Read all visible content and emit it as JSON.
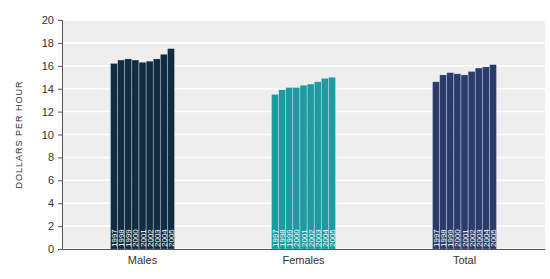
{
  "chart_data": {
    "type": "bar",
    "y_label": "DOLLARS PER HOUR",
    "categories": [
      "Males",
      "Females",
      "Total"
    ],
    "series": [
      {
        "name": "1997",
        "values": [
          16.2,
          13.5,
          14.6
        ]
      },
      {
        "name": "1998",
        "values": [
          16.5,
          13.9,
          15.2
        ]
      },
      {
        "name": "1999",
        "values": [
          16.6,
          14.1,
          15.4
        ]
      },
      {
        "name": "2000",
        "values": [
          16.5,
          14.1,
          15.3
        ]
      },
      {
        "name": "2001",
        "values": [
          16.3,
          14.3,
          15.2
        ]
      },
      {
        "name": "2002",
        "values": [
          16.4,
          14.4,
          15.5
        ]
      },
      {
        "name": "2003",
        "values": [
          16.6,
          14.6,
          15.8
        ]
      },
      {
        "name": "2004",
        "values": [
          17.0,
          14.9,
          15.9
        ]
      },
      {
        "name": "2005",
        "values": [
          17.5,
          15.0,
          16.1
        ]
      }
    ],
    "colors": [
      "#0f2c42",
      "#1d9aa2",
      "#2b3b6c"
    ],
    "ylim": [
      0,
      20
    ],
    "yticks": [
      0,
      2,
      4,
      6,
      8,
      10,
      12,
      14,
      16,
      18,
      20
    ],
    "grid": true
  }
}
